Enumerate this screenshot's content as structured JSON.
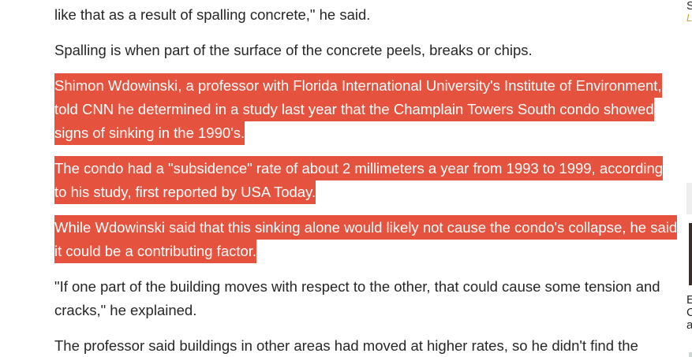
{
  "article": {
    "paragraphs": [
      {
        "id": "p0",
        "text": "like that as a result of spalling concrete,\" he said.",
        "highlighted": false
      },
      {
        "id": "p1",
        "text": "Spalling is when part of the surface of the concrete peels, breaks or chips.",
        "highlighted": false
      },
      {
        "id": "p2",
        "text": "Shimon Wdowinski, a professor with Florida International University's Institute of Environment, told CNN he determined in a study last year that the Champlain Towers South condo showed signs of sinking in the 1990's.",
        "highlighted": true
      },
      {
        "id": "p3",
        "text": "The condo had a \"subsidence\" rate of about 2 millimeters a year from 1993 to 1999, according to his study, first reported by USA Today.",
        "highlighted": true
      },
      {
        "id": "p4",
        "text": "While Wdowinski said that this sinking alone would likely not cause the condo's collapse, he said it could be a contributing factor.",
        "highlighted": true
      },
      {
        "id": "p5",
        "text": "\"If one part of the building moves with respect to the other, that could cause some tension and cracks,\" he explained.",
        "highlighted": false
      },
      {
        "id": "p6",
        "text": "The professor said buildings in other areas had moved at higher rates, so he didn't find the",
        "highlighted": false
      }
    ]
  },
  "right_rail": {
    "clipped_chars": [
      "S",
      "L",
      "E",
      "C",
      "a"
    ]
  },
  "colors": {
    "highlight": "#e5533f",
    "text": "#262626",
    "background": "#ffffff"
  }
}
